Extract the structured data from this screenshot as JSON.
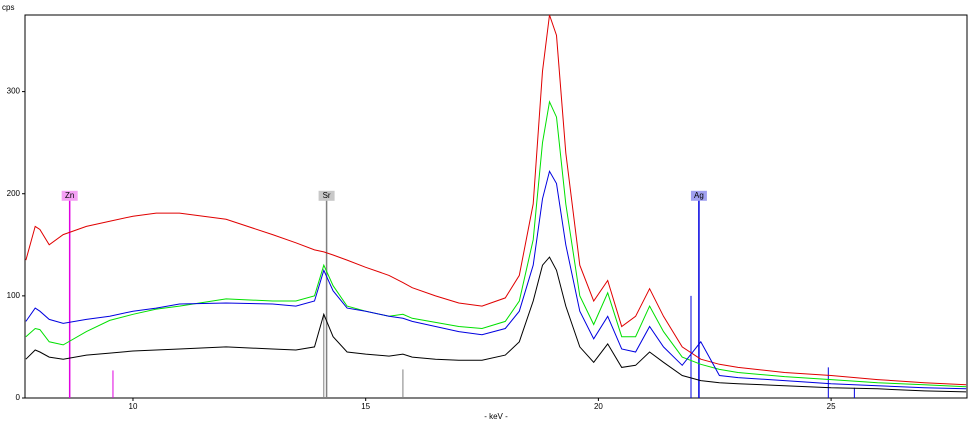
{
  "chart_data": {
    "type": "line",
    "xlabel": "- keV -",
    "ylabel": "cps",
    "xlim": [
      7.68,
      27.92
    ],
    "ylim": [
      0,
      375
    ],
    "xticks": [
      10,
      15,
      20,
      25
    ],
    "yticks": [
      0,
      100,
      200,
      300
    ],
    "x": [
      7.7,
      7.9,
      8.0,
      8.2,
      8.5,
      9,
      9.5,
      10,
      10.5,
      11,
      12,
      13,
      13.5,
      13.9,
      14.1,
      14.3,
      14.6,
      15,
      15.5,
      15.8,
      16,
      16.5,
      17,
      17.5,
      18,
      18.3,
      18.6,
      18.8,
      18.95,
      19.1,
      19.3,
      19.6,
      19.9,
      20.2,
      20.5,
      20.8,
      21.1,
      21.4,
      21.8,
      22.2,
      22.6,
      23,
      24,
      25,
      26,
      27,
      27.9
    ],
    "series": [
      {
        "color": "#e00000",
        "values": [
          135,
          168,
          165,
          150,
          160,
          168,
          173,
          178,
          181,
          181,
          175,
          160,
          152,
          145,
          143,
          140,
          135,
          128,
          120,
          113,
          108,
          100,
          93,
          90,
          98,
          120,
          190,
          320,
          375,
          355,
          240,
          130,
          95,
          115,
          70,
          80,
          107,
          80,
          50,
          38,
          33,
          30,
          25,
          22,
          18,
          15,
          13
        ]
      },
      {
        "color": "#00e000",
        "values": [
          60,
          68,
          67,
          55,
          52,
          65,
          76,
          82,
          87,
          90,
          97,
          95,
          95,
          100,
          130,
          110,
          90,
          85,
          80,
          82,
          78,
          74,
          70,
          68,
          75,
          95,
          155,
          250,
          290,
          275,
          190,
          100,
          72,
          103,
          60,
          60,
          90,
          65,
          40,
          33,
          28,
          25,
          21,
          18,
          15,
          13,
          11
        ]
      },
      {
        "color": "#0000e0",
        "values": [
          75,
          88,
          85,
          77,
          73,
          77,
          80,
          85,
          88,
          92,
          93,
          92,
          90,
          95,
          125,
          105,
          88,
          85,
          80,
          78,
          75,
          70,
          65,
          62,
          68,
          85,
          130,
          195,
          222,
          210,
          150,
          85,
          58,
          80,
          48,
          45,
          70,
          50,
          32,
          55,
          22,
          20,
          17,
          14,
          12,
          10,
          9
        ]
      },
      {
        "color": "#000000",
        "values": [
          38,
          47,
          45,
          40,
          38,
          42,
          44,
          46,
          47,
          48,
          50,
          48,
          47,
          50,
          82,
          60,
          45,
          43,
          41,
          43,
          40,
          38,
          37,
          37,
          42,
          55,
          95,
          130,
          138,
          125,
          90,
          50,
          35,
          53,
          30,
          32,
          45,
          35,
          22,
          17,
          15,
          14,
          12,
          10,
          9,
          7,
          6
        ]
      }
    ],
    "markers": [
      {
        "label": "Zn",
        "x": 8.64,
        "height": 197,
        "color": "#e000e0",
        "label_bg": "#f4a0f4"
      },
      {
        "label": "Sr",
        "x": 14.16,
        "height": 197,
        "color": "#808080",
        "label_bg": "#c8c8c8"
      },
      {
        "label": "Ag",
        "x": 22.16,
        "height": 197,
        "color": "#0000e0",
        "label_bg": "#a0a0f0"
      }
    ],
    "lines": [
      {
        "x": 9.57,
        "height": 27,
        "color": "#e000e0"
      },
      {
        "x": 14.1,
        "height": 82,
        "color": "#808080"
      },
      {
        "x": 15.8,
        "height": 28,
        "color": "#808080"
      },
      {
        "x": 21.99,
        "height": 100,
        "color": "#0000e0"
      },
      {
        "x": 24.94,
        "height": 30,
        "color": "#0000e0"
      },
      {
        "x": 25.5,
        "height": 10,
        "color": "#0000e0"
      }
    ]
  }
}
